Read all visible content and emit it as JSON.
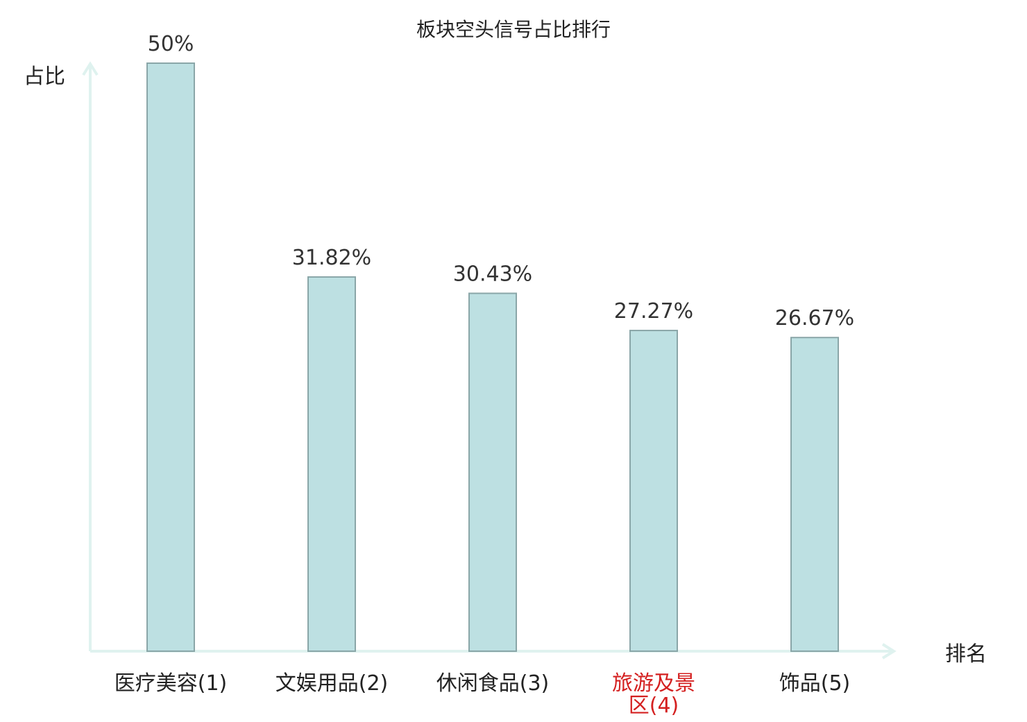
{
  "chart_data": {
    "type": "bar",
    "title": "板块空头信号占比排行",
    "xlabel": "排名",
    "ylabel": "占比",
    "categories": [
      {
        "lines": [
          "医疗美容(1)"
        ],
        "highlight": false
      },
      {
        "lines": [
          "文娱用品(2)"
        ],
        "highlight": false
      },
      {
        "lines": [
          "休闲食品(3)"
        ],
        "highlight": false
      },
      {
        "lines": [
          "旅游及景",
          "区(4)"
        ],
        "highlight": true
      },
      {
        "lines": [
          "饰品(5)"
        ],
        "highlight": false
      }
    ],
    "values": [
      50,
      31.82,
      30.43,
      27.27,
      26.67
    ],
    "value_labels": [
      "50%",
      "31.82%",
      "30.43%",
      "27.27%",
      "26.67%"
    ],
    "ylim": [
      0,
      50
    ],
    "grid": false,
    "colors": {
      "bar_fill": "#bde0e2",
      "bar_stroke": "#8aa6a8",
      "axis": "#dff2ef",
      "highlight_text": "#d42020",
      "text": "#222222"
    }
  }
}
